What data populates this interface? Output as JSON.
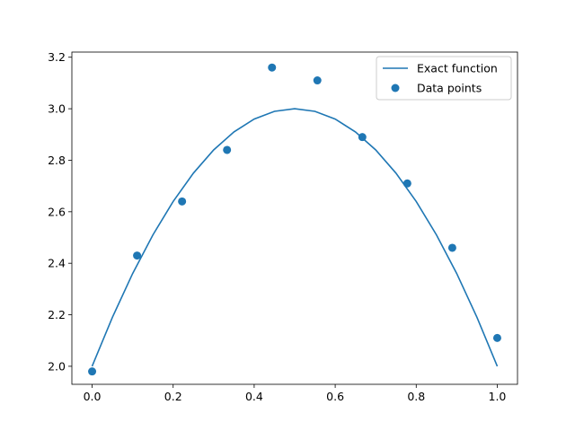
{
  "chart_data": {
    "type": "line",
    "title": "",
    "xlabel": "",
    "ylabel": "",
    "xlim": [
      -0.05,
      1.05
    ],
    "ylim": [
      1.93,
      3.22
    ],
    "x_ticks": [
      0.0,
      0.2,
      0.4,
      0.6,
      0.8,
      1.0
    ],
    "x_tick_labels": [
      "0.0",
      "0.2",
      "0.4",
      "0.6",
      "0.8",
      "1.0"
    ],
    "y_ticks": [
      2.0,
      2.2,
      2.4,
      2.6,
      2.8,
      3.0,
      3.2
    ],
    "y_tick_labels": [
      "2.0",
      "2.2",
      "2.4",
      "2.6",
      "2.8",
      "3.0",
      "3.2"
    ],
    "grid": false,
    "legend_position": "top-right",
    "series": [
      {
        "name": "Exact function",
        "kind": "line",
        "color": "#1f77b4",
        "x": [
          0.0,
          0.05,
          0.1,
          0.15,
          0.2,
          0.25,
          0.3,
          0.35,
          0.4,
          0.45,
          0.5,
          0.55,
          0.6,
          0.65,
          0.7,
          0.75,
          0.8,
          0.85,
          0.9,
          0.95,
          1.0
        ],
        "y": [
          2.0,
          2.19,
          2.36,
          2.51,
          2.64,
          2.75,
          2.84,
          2.91,
          2.96,
          2.99,
          3.0,
          2.99,
          2.96,
          2.91,
          2.84,
          2.75,
          2.64,
          2.51,
          2.36,
          2.19,
          2.0
        ]
      },
      {
        "name": "Data points",
        "kind": "scatter",
        "color": "#1f77b4",
        "x": [
          0.0,
          0.111,
          0.222,
          0.333,
          0.444,
          0.556,
          0.667,
          0.778,
          0.889,
          1.0
        ],
        "y": [
          1.98,
          2.43,
          2.64,
          2.84,
          3.16,
          3.11,
          2.89,
          2.71,
          2.46,
          2.11
        ]
      }
    ]
  }
}
